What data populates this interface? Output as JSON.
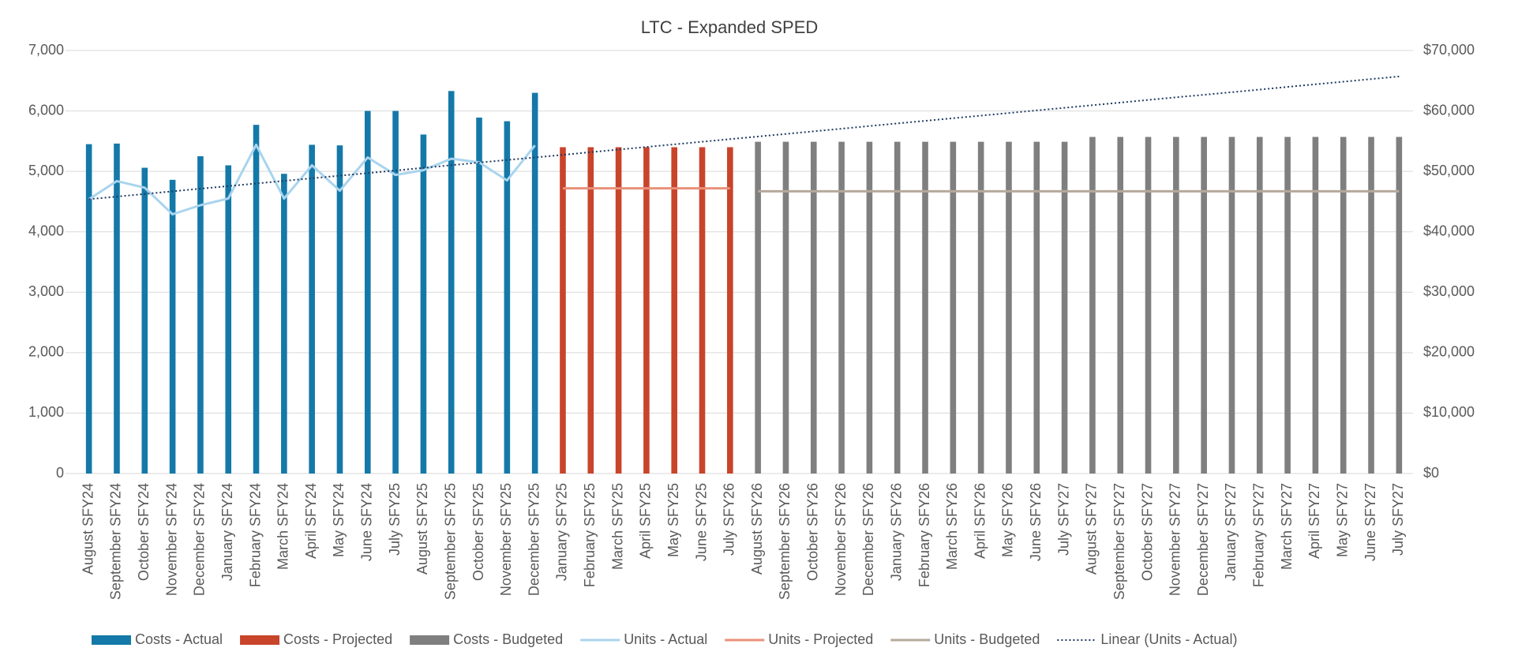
{
  "chart_data": {
    "type": "bar",
    "title": "LTC - Expanded SPED",
    "categories": [
      "August SFY24",
      "September SFY24",
      "October SFY24",
      "November SFY24",
      "December SFY24",
      "January SFY24",
      "February SFY24",
      "March SFY24",
      "April SFY24",
      "May SFY24",
      "June SFY24",
      "July SFY25",
      "August SFY25",
      "September SFY25",
      "October SFY25",
      "November SFY25",
      "December SFY25",
      "January SFY25",
      "February SFY25",
      "March SFY25",
      "April SFY25",
      "May SFY25",
      "June SFY25",
      "July SFY26",
      "August SFY26",
      "September SFY26",
      "October SFY26",
      "November SFY26",
      "December SFY26",
      "January SFY26",
      "February SFY26",
      "March SFY26",
      "April SFY26",
      "May SFY26",
      "June SFY26",
      "July SFY27",
      "August SFY27",
      "September SFY27",
      "October SFY27",
      "November SFY27",
      "December SFY27",
      "January SFY27",
      "February SFY27",
      "March SFY27",
      "April SFY27",
      "May SFY27",
      "June SFY27",
      "July SFY27"
    ],
    "series": [
      {
        "name": "Costs - Actual",
        "type": "bar",
        "axis": "y2",
        "color": "#1479a8",
        "values": [
          54500,
          54600,
          50600,
          48600,
          52500,
          51000,
          57700,
          49600,
          54400,
          54300,
          60000,
          60000,
          56100,
          63300,
          58900,
          58300,
          63000,
          null,
          null,
          null,
          null,
          null,
          null,
          null,
          null,
          null,
          null,
          null,
          null,
          null,
          null,
          null,
          null,
          null,
          null,
          null,
          null,
          null,
          null,
          null,
          null,
          null,
          null,
          null,
          null,
          null,
          null,
          null
        ]
      },
      {
        "name": "Costs - Projected",
        "type": "bar",
        "axis": "y2",
        "color": "#c8442a",
        "values": [
          null,
          null,
          null,
          null,
          null,
          null,
          null,
          null,
          null,
          null,
          null,
          null,
          null,
          null,
          null,
          null,
          null,
          54000,
          54000,
          54000,
          54000,
          54000,
          54000,
          54000,
          null,
          null,
          null,
          null,
          null,
          null,
          null,
          null,
          null,
          null,
          null,
          null,
          null,
          null,
          null,
          null,
          null,
          null,
          null,
          null,
          null,
          null,
          null,
          null
        ]
      },
      {
        "name": "Costs - Budgeted",
        "type": "bar",
        "axis": "y2",
        "color": "#7f7f7f",
        "values": [
          null,
          null,
          null,
          null,
          null,
          null,
          null,
          null,
          null,
          null,
          null,
          null,
          null,
          null,
          null,
          null,
          null,
          null,
          null,
          null,
          null,
          null,
          null,
          null,
          54900,
          54900,
          54900,
          54900,
          54900,
          54900,
          54900,
          54900,
          54900,
          54900,
          54900,
          54900,
          55700,
          55700,
          55700,
          55700,
          55700,
          55700,
          55700,
          55700,
          55700,
          55700,
          55700,
          55700
        ]
      },
      {
        "name": "Units - Actual",
        "type": "line",
        "color": "#a9d4ee",
        "values": [
          4540,
          4840,
          4730,
          4290,
          4440,
          4550,
          5440,
          4550,
          5100,
          4680,
          5230,
          4940,
          5020,
          5210,
          5150,
          4850,
          5430,
          null,
          null,
          null,
          null,
          null,
          null,
          null,
          null,
          null,
          null,
          null,
          null,
          null,
          null,
          null,
          null,
          null,
          null,
          null,
          null,
          null,
          null,
          null,
          null,
          null,
          null,
          null,
          null,
          null,
          null,
          null
        ]
      },
      {
        "name": "Units - Projected",
        "type": "line",
        "color": "#e9907a",
        "values": [
          null,
          null,
          null,
          null,
          null,
          null,
          null,
          null,
          null,
          null,
          null,
          null,
          null,
          null,
          null,
          null,
          null,
          4720,
          4720,
          4720,
          4720,
          4720,
          4720,
          4720,
          null,
          null,
          null,
          null,
          null,
          null,
          null,
          null,
          null,
          null,
          null,
          null,
          null,
          null,
          null,
          null,
          null,
          null,
          null,
          null,
          null,
          null,
          null,
          null
        ]
      },
      {
        "name": "Units - Budgeted",
        "type": "line",
        "color": "#b6a99b",
        "values": [
          null,
          null,
          null,
          null,
          null,
          null,
          null,
          null,
          null,
          null,
          null,
          null,
          null,
          null,
          null,
          null,
          null,
          null,
          null,
          null,
          null,
          null,
          null,
          null,
          4670,
          4670,
          4670,
          4670,
          4670,
          4670,
          4670,
          4670,
          4670,
          4670,
          4670,
          4670,
          4670,
          4670,
          4670,
          4670,
          4670,
          4670,
          4670,
          4670,
          4670,
          4670,
          4670,
          4670
        ]
      },
      {
        "name": "Linear (Units - Actual)",
        "type": "line",
        "dotted": true,
        "color": "#1f3a60",
        "values": [
          4540,
          4583,
          4626,
          4670,
          4713,
          4756,
          4799,
          4842,
          4886,
          4929,
          4972,
          5015,
          5058,
          5102,
          5145,
          5188,
          5231,
          5274,
          5318,
          5361,
          5404,
          5447,
          5490,
          5534,
          5577,
          5620,
          5663,
          5706,
          5750,
          5793,
          5836,
          5879,
          5922,
          5966,
          6009,
          6052,
          6095,
          6138,
          6182,
          6225,
          6268,
          6311,
          6354,
          6398,
          6441,
          6484,
          6527,
          6570
        ]
      }
    ],
    "ylim": [
      0,
      7000
    ],
    "yticks": [
      0,
      {
        "value": 1000,
        "label": "1,000"
      },
      {
        "value": 2000,
        "label": "2,000"
      },
      {
        "value": 3000,
        "label": "3,000"
      },
      {
        "value": 4000,
        "label": "4,000"
      },
      {
        "value": 5000,
        "label": "5,000"
      },
      {
        "value": 6000,
        "label": "6,000"
      },
      {
        "value": 7000,
        "label": "7,000"
      }
    ],
    "y2lim": [
      0,
      70000
    ],
    "y2ticks": [
      {
        "value": 0,
        "label": "$0"
      },
      {
        "value": 10000,
        "label": "$10,000"
      },
      {
        "value": 20000,
        "label": "$20,000"
      },
      {
        "value": 30000,
        "label": "$30,000"
      },
      {
        "value": 40000,
        "label": "$40,000"
      },
      {
        "value": 50000,
        "label": "$50,000"
      },
      {
        "value": 60000,
        "label": "$60,000"
      },
      {
        "value": 70000,
        "label": "$70,000"
      }
    ],
    "grid": true,
    "legend": "bottom"
  }
}
